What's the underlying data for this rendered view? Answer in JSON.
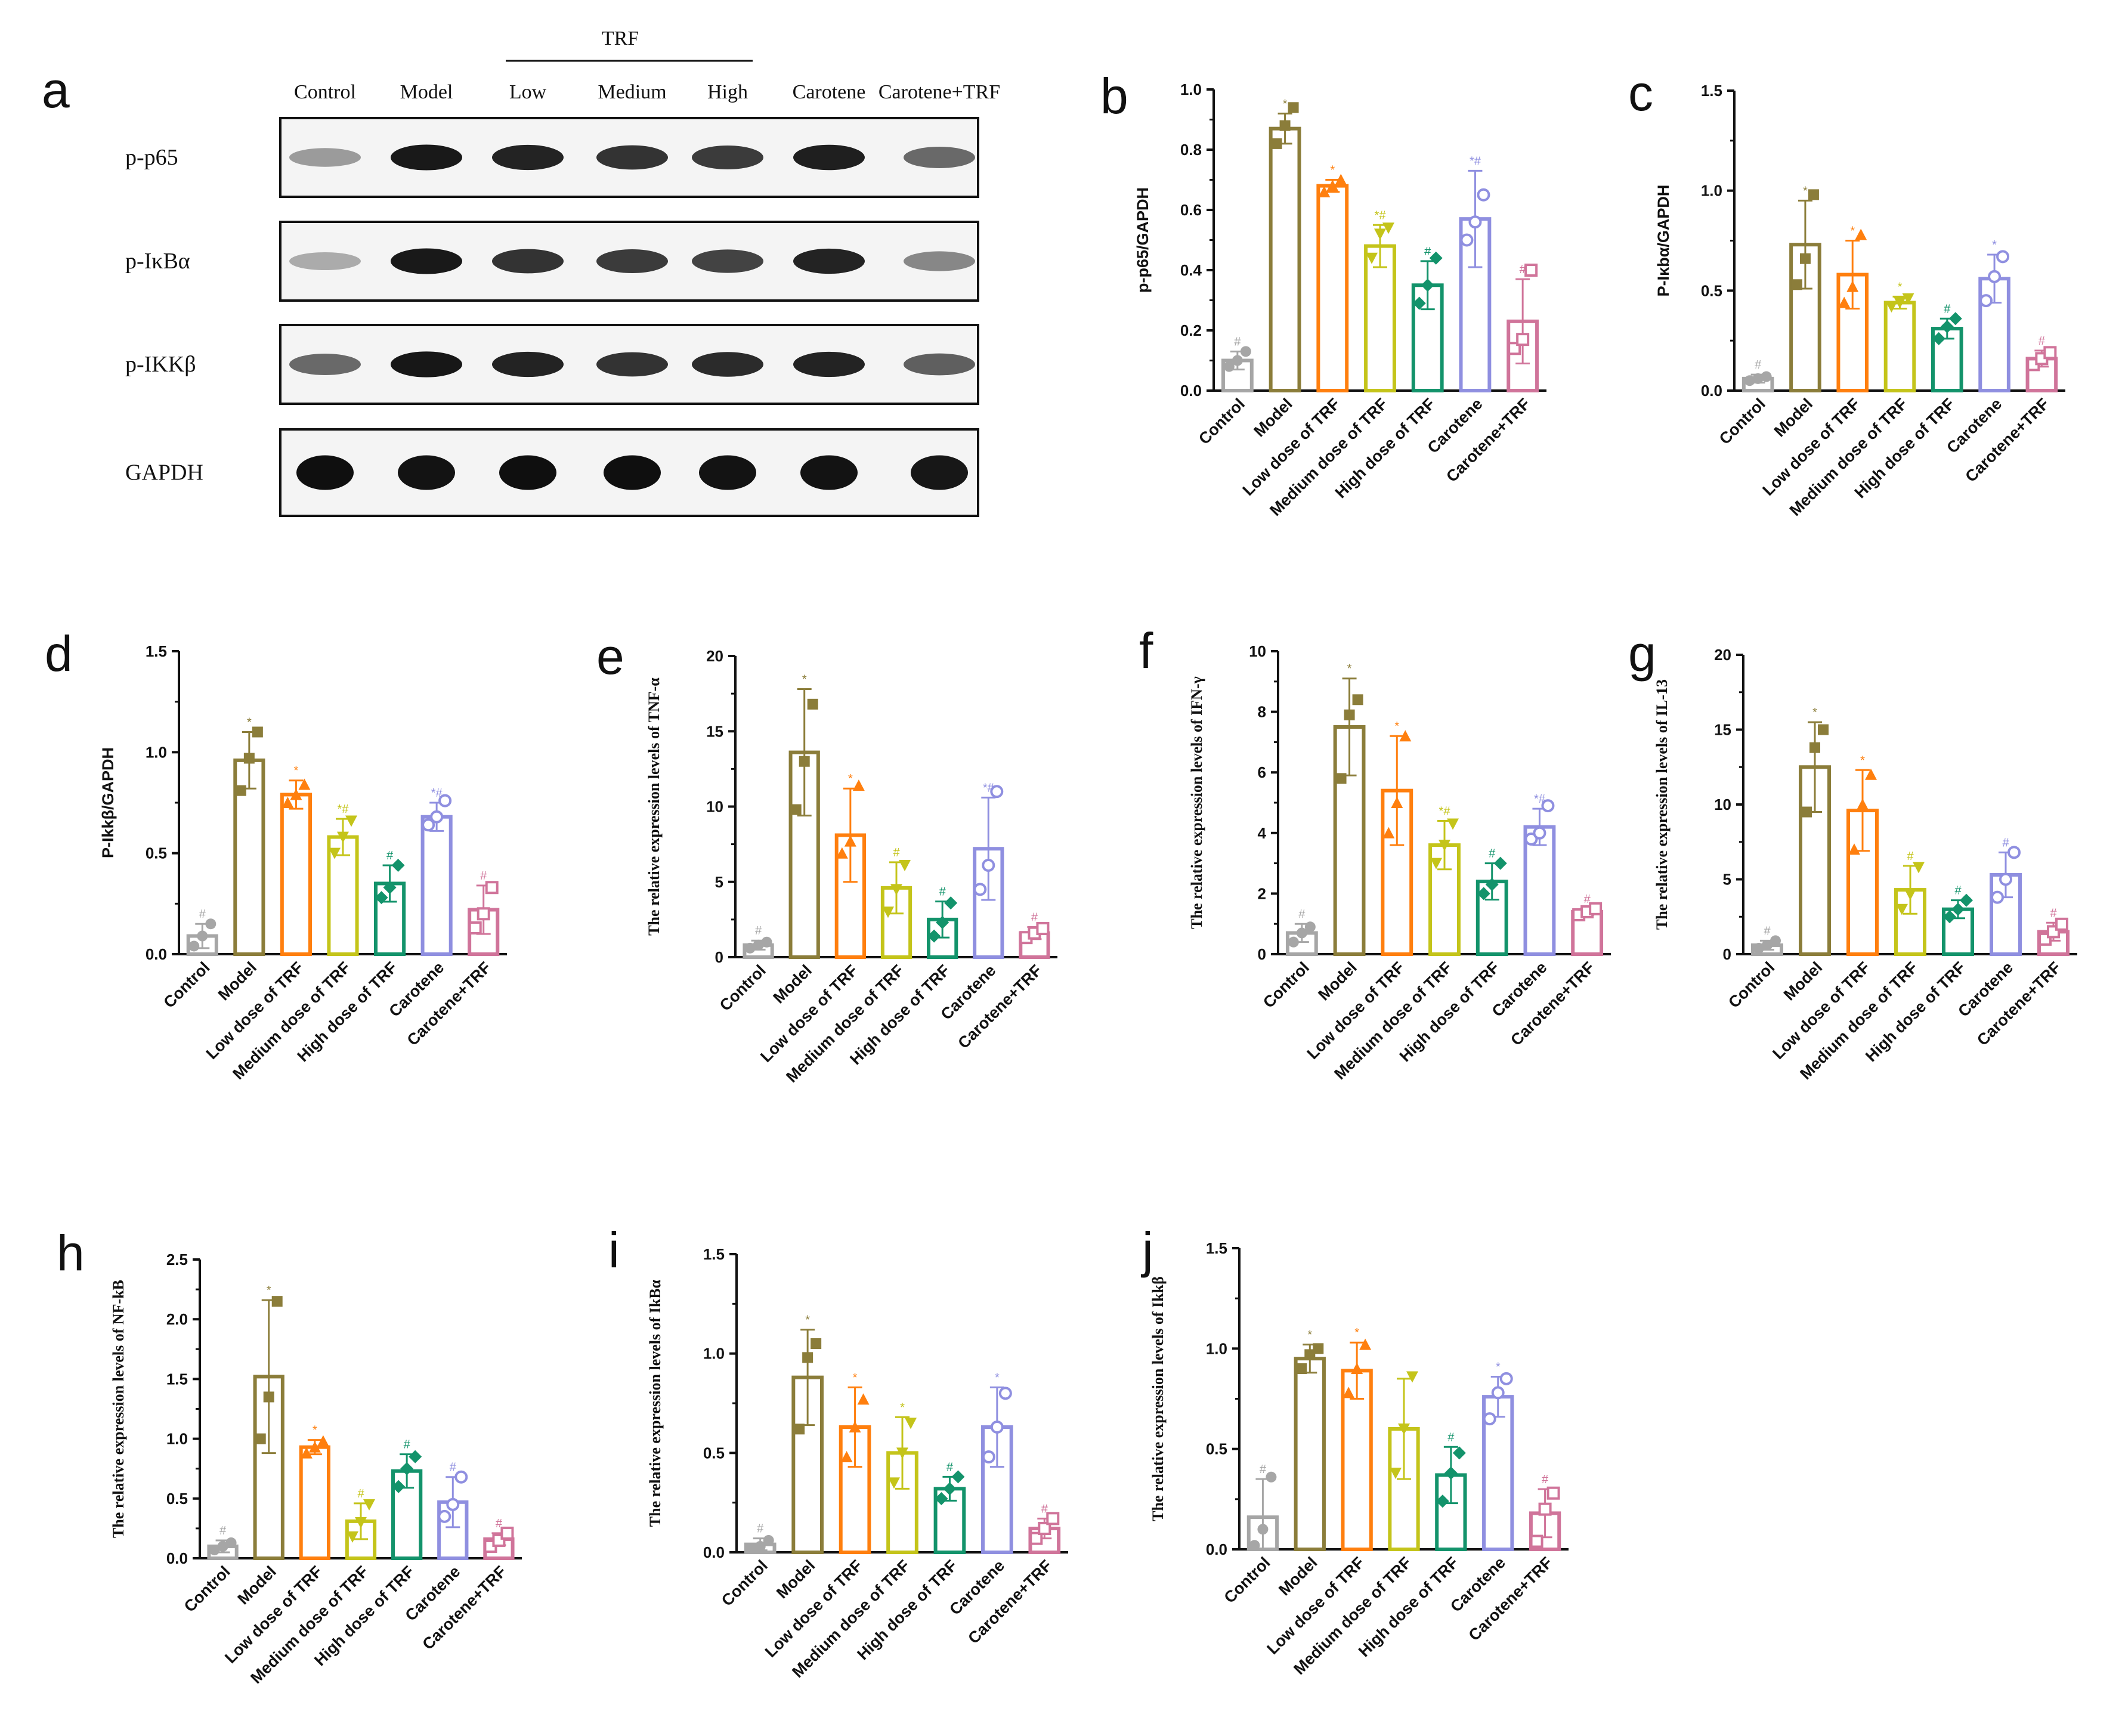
{
  "blot": {
    "label": "a",
    "trf_label": "TRF",
    "lanes": [
      "Control",
      "Model",
      "Low",
      "Medium",
      "High",
      "Carotene",
      "Carotene+TRF"
    ],
    "rows": [
      "p-p65",
      "p-IκBα",
      "p-IKKβ",
      "GAPDH"
    ],
    "intensity": [
      [
        0.3,
        0.95,
        0.9,
        0.82,
        0.78,
        0.92,
        0.55
      ],
      [
        0.22,
        0.95,
        0.82,
        0.78,
        0.74,
        0.9,
        0.4
      ],
      [
        0.55,
        0.96,
        0.9,
        0.82,
        0.86,
        0.9,
        0.6
      ],
      [
        1.0,
        0.98,
        1.0,
        1.0,
        0.98,
        0.98,
        0.96
      ]
    ]
  },
  "groups": [
    "Control",
    "Model",
    "Low dose of TRF",
    "Medium dose of TRF",
    "High dose of TRF",
    "Carotene",
    "Carotene+TRF"
  ],
  "group_colors": [
    "#a6a6a6",
    "#8b7d3a",
    "#ff7f0e",
    "#c4c41a",
    "#13936b",
    "#8f8fe0",
    "#d0749a"
  ],
  "markers": [
    "circle",
    "square",
    "triangle",
    "triangle-down",
    "diamond",
    "circle-open",
    "square-open"
  ],
  "chart_data": [
    {
      "panel": "b",
      "type": "bar",
      "ylabel": "p-p65/GAPDH",
      "ylabel_font": "sans",
      "ylim": [
        0,
        1.0
      ],
      "yticks": [
        "0.0",
        "0.2",
        "0.4",
        "0.6",
        "0.8",
        "1.0"
      ],
      "categories": [
        "Control",
        "Model",
        "Low dose of TRF",
        "Medium dose of TRF",
        "High dose of TRF",
        "Carotene",
        "Carotene+TRF"
      ],
      "values": [
        0.1,
        0.87,
        0.68,
        0.48,
        0.35,
        0.57,
        0.23
      ],
      "errors": [
        0.03,
        0.05,
        0.02,
        0.07,
        0.08,
        0.16,
        0.14
      ],
      "points": [
        [
          0.08,
          0.1,
          0.13
        ],
        [
          0.82,
          0.88,
          0.94
        ],
        [
          0.66,
          0.68,
          0.7
        ],
        [
          0.44,
          0.52,
          0.54
        ],
        [
          0.29,
          0.35,
          0.44
        ],
        [
          0.5,
          0.56,
          0.65
        ],
        [
          0.14,
          0.17,
          0.4
        ]
      ],
      "sig": [
        "#",
        "*",
        "*",
        "*#",
        "#",
        "*#",
        "#"
      ]
    },
    {
      "panel": "c",
      "type": "bar",
      "ylabel": "P-Iκbα/GAPDH",
      "ylabel_font": "sans",
      "ylim": [
        0,
        1.5
      ],
      "yticks": [
        "0.0",
        "0.5",
        "1.0",
        "1.5"
      ],
      "categories": [
        "Control",
        "Model",
        "Low dose of TRF",
        "Medium dose of TRF",
        "High dose of TRF",
        "Carotene",
        "Carotene+TRF"
      ],
      "values": [
        0.06,
        0.73,
        0.58,
        0.44,
        0.31,
        0.56,
        0.16
      ],
      "errors": [
        0.02,
        0.22,
        0.17,
        0.03,
        0.05,
        0.12,
        0.04
      ],
      "points": [
        [
          0.05,
          0.06,
          0.07
        ],
        [
          0.53,
          0.66,
          0.98
        ],
        [
          0.44,
          0.52,
          0.78
        ],
        [
          0.42,
          0.44,
          0.46
        ],
        [
          0.26,
          0.32,
          0.36
        ],
        [
          0.45,
          0.57,
          0.67
        ],
        [
          0.13,
          0.16,
          0.19
        ]
      ],
      "sig": [
        "#",
        "*",
        "*",
        "*",
        "#",
        "*",
        "#"
      ]
    },
    {
      "panel": "d",
      "type": "bar",
      "ylabel": "P-Ikkβ/GAPDH",
      "ylabel_font": "sans",
      "ylim": [
        0,
        1.5
      ],
      "yticks": [
        "0.0",
        "0.5",
        "1.0",
        "1.5"
      ],
      "categories": [
        "Control",
        "Model",
        "Low dose of TRF",
        "Medium dose of TRF",
        "High dose of TRF",
        "Carotene",
        "Carotene+TRF"
      ],
      "values": [
        0.09,
        0.96,
        0.79,
        0.58,
        0.35,
        0.68,
        0.22
      ],
      "errors": [
        0.06,
        0.14,
        0.07,
        0.09,
        0.09,
        0.07,
        0.12
      ],
      "points": [
        [
          0.04,
          0.09,
          0.15
        ],
        [
          0.81,
          0.97,
          1.1
        ],
        [
          0.75,
          0.79,
          0.84
        ],
        [
          0.5,
          0.58,
          0.66
        ],
        [
          0.28,
          0.33,
          0.44
        ],
        [
          0.64,
          0.68,
          0.76
        ],
        [
          0.13,
          0.2,
          0.33
        ]
      ],
      "sig": [
        "#",
        "*",
        "*",
        "*#",
        "#",
        "*#",
        "#"
      ]
    },
    {
      "panel": "e",
      "type": "bar",
      "ylabel": "The relative expression levels of TNF-α",
      "ylabel_font": "serif",
      "ylim": [
        0,
        20
      ],
      "yticks": [
        "0",
        "5",
        "10",
        "15",
        "20"
      ],
      "categories": [
        "Control",
        "Model",
        "Low dose of TRF",
        "Medium dose of TRF",
        "High dose of TRF",
        "Carotene",
        "Carotene+TRF"
      ],
      "values": [
        0.8,
        13.6,
        8.1,
        4.6,
        2.5,
        7.2,
        1.6
      ],
      "errors": [
        0.3,
        4.2,
        3.1,
        1.7,
        1.2,
        3.4,
        0.4
      ],
      "points": [
        [
          0.6,
          0.8,
          1.0
        ],
        [
          9.8,
          13.0,
          16.8
        ],
        [
          6.9,
          7.7,
          11.4
        ],
        [
          3.0,
          4.5,
          6.1
        ],
        [
          1.4,
          2.3,
          3.6
        ],
        [
          4.5,
          6.1,
          11.0
        ],
        [
          1.3,
          1.6,
          1.9
        ]
      ],
      "sig": [
        "#",
        "*",
        "*",
        "#",
        "#",
        "*#",
        "#"
      ]
    },
    {
      "panel": "f",
      "type": "bar",
      "ylabel": "The relative expression levels of IFN-γ",
      "ylabel_font": "serif",
      "ylim": [
        0,
        10
      ],
      "yticks": [
        "0",
        "2",
        "4",
        "6",
        "8",
        "10"
      ],
      "categories": [
        "Control",
        "Model",
        "Low dose of TRF",
        "Medium dose of TRF",
        "High dose of TRF",
        "Carotene",
        "Carotene+TRF"
      ],
      "values": [
        0.7,
        7.5,
        5.4,
        3.6,
        2.4,
        4.2,
        1.4
      ],
      "errors": [
        0.3,
        1.6,
        1.8,
        0.8,
        0.6,
        0.6,
        0.1
      ],
      "points": [
        [
          0.4,
          0.7,
          0.9
        ],
        [
          5.8,
          7.9,
          8.4
        ],
        [
          4.0,
          5.0,
          7.2
        ],
        [
          3.0,
          3.6,
          4.3
        ],
        [
          2.0,
          2.3,
          3.0
        ],
        [
          3.8,
          4.0,
          4.9
        ],
        [
          1.3,
          1.4,
          1.5
        ]
      ],
      "sig": [
        "#",
        "*",
        "*",
        "*#",
        "#",
        "*#",
        "#"
      ]
    },
    {
      "panel": "g",
      "type": "bar",
      "ylabel": "The relative expression levels of IL-13",
      "ylabel_font": "serif",
      "ylim": [
        0,
        20
      ],
      "yticks": [
        "0",
        "5",
        "10",
        "15",
        "20"
      ],
      "categories": [
        "Control",
        "Model",
        "Low dose of TRF",
        "Medium dose of TRF",
        "High dose of TRF",
        "Carotene",
        "Carotene+TRF"
      ],
      "values": [
        0.6,
        12.5,
        9.6,
        4.3,
        3.0,
        5.3,
        1.5
      ],
      "errors": [
        0.3,
        3.0,
        2.7,
        1.6,
        0.6,
        1.5,
        0.6
      ],
      "points": [
        [
          0.4,
          0.6,
          0.9
        ],
        [
          9.5,
          13.8,
          15.0
        ],
        [
          7.0,
          10.0,
          12.0
        ],
        [
          3.0,
          4.0,
          5.8
        ],
        [
          2.5,
          3.0,
          3.6
        ],
        [
          3.8,
          5.0,
          6.8
        ],
        [
          1.0,
          1.5,
          2.0
        ]
      ],
      "sig": [
        "#",
        "*",
        "*",
        "#",
        "#",
        "#",
        "#"
      ]
    },
    {
      "panel": "h",
      "type": "bar",
      "ylabel": "The relative expression levels of NF-kB",
      "ylabel_font": "serif",
      "ylim": [
        0,
        2.5
      ],
      "yticks": [
        "0.0",
        "0.5",
        "1.0",
        "1.5",
        "2.0",
        "2.5"
      ],
      "categories": [
        "Control",
        "Model",
        "Low dose of TRF",
        "Medium dose of TRF",
        "High dose of TRF",
        "Carotene",
        "Carotene+TRF"
      ],
      "values": [
        0.1,
        1.52,
        0.93,
        0.31,
        0.73,
        0.47,
        0.16
      ],
      "errors": [
        0.05,
        0.64,
        0.06,
        0.15,
        0.14,
        0.21,
        0.05
      ],
      "points": [
        [
          0.07,
          0.1,
          0.13
        ],
        [
          1.0,
          1.35,
          2.15
        ],
        [
          0.88,
          0.93,
          0.98
        ],
        [
          0.18,
          0.3,
          0.45
        ],
        [
          0.6,
          0.75,
          0.85
        ],
        [
          0.35,
          0.45,
          0.68
        ],
        [
          0.1,
          0.15,
          0.21
        ]
      ],
      "sig": [
        "#",
        "*",
        "*",
        "#",
        "#",
        "#",
        "#"
      ]
    },
    {
      "panel": "i",
      "type": "bar",
      "ylabel": "The relative expression levels of IkBα",
      "ylabel_font": "serif",
      "ylim": [
        0,
        1.5
      ],
      "yticks": [
        "0.0",
        "0.5",
        "1.0",
        "1.5"
      ],
      "categories": [
        "Control",
        "Model",
        "Low dose of TRF",
        "Medium dose of TRF",
        "High dose of TRF",
        "Carotene",
        "Carotene+TRF"
      ],
      "values": [
        0.04,
        0.88,
        0.63,
        0.5,
        0.32,
        0.63,
        0.12
      ],
      "errors": [
        0.03,
        0.24,
        0.2,
        0.18,
        0.06,
        0.2,
        0.05
      ],
      "points": [
        [
          0.02,
          0.03,
          0.06
        ],
        [
          0.62,
          0.98,
          1.05
        ],
        [
          0.48,
          0.63,
          0.77
        ],
        [
          0.35,
          0.5,
          0.65
        ],
        [
          0.27,
          0.32,
          0.38
        ],
        [
          0.48,
          0.63,
          0.8
        ],
        [
          0.07,
          0.12,
          0.17
        ]
      ],
      "sig": [
        "#",
        "*",
        "*",
        "*",
        "#",
        "*",
        "#"
      ]
    },
    {
      "panel": "j",
      "type": "bar",
      "ylabel": "The relative expression levels of Ikkβ",
      "ylabel_font": "serif",
      "ylim": [
        0,
        1.5
      ],
      "yticks": [
        "0.0",
        "0.5",
        "1.0",
        "1.5"
      ],
      "categories": [
        "Control",
        "Model",
        "Low dose of TRF",
        "Medium dose of TRF",
        "High dose of TRF",
        "Carotene",
        "Carotene+TRF"
      ],
      "values": [
        0.16,
        0.95,
        0.89,
        0.6,
        0.37,
        0.76,
        0.18
      ],
      "errors": [
        0.19,
        0.07,
        0.14,
        0.25,
        0.14,
        0.1,
        0.12
      ],
      "points": [
        [
          0.02,
          0.1,
          0.36
        ],
        [
          0.9,
          0.97,
          1.0
        ],
        [
          0.78,
          0.9,
          1.02
        ],
        [
          0.38,
          0.6,
          0.86
        ],
        [
          0.24,
          0.38,
          0.48
        ],
        [
          0.65,
          0.78,
          0.85
        ],
        [
          0.04,
          0.2,
          0.28
        ]
      ],
      "sig": [
        "#",
        "*",
        "*",
        "",
        "#",
        "*",
        "#"
      ]
    }
  ]
}
